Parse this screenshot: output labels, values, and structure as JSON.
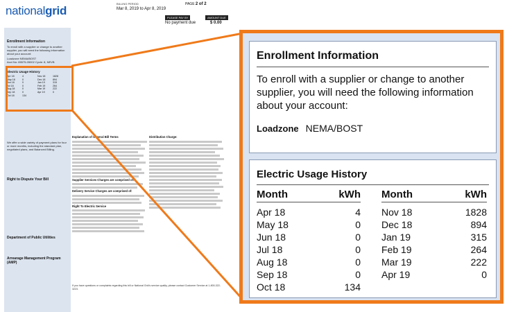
{
  "bill": {
    "logo_light": "national",
    "logo_bold": "grid",
    "billing_period_label": "BILLING PERIOD",
    "billing_period": "Mar 8, 2019 to Apr 8, 2019",
    "page_label": "PAGE",
    "page_value": "2 of 2",
    "please_pay_by_label": "PLEASE PAY BY",
    "amount_due_label": "AMOUNT DUE",
    "please_pay_by": "No payment due",
    "amount_due": "$ 0.00"
  },
  "sidebar": {
    "enroll_title": "Enrollment Information",
    "enroll_text": "To enroll with a supplier or change to another supplier, you will need the following information about your account:",
    "loadzone_line": "Loadzone NEMA/BOST",
    "acct_line": "Acct No: 65575-05002   Cycle: 8, NEVB",
    "usage_title": "Electric Usage History",
    "cta_text": "We offer a wide variety of payment plans for four or more months, including the standard plan, negotiated plans, and Balanced Billing.",
    "dispute_title": "Right to Dispute Your Bill",
    "dpu_title": "Department of Public Utilities",
    "arrears_title": "Arrearage Management Program (AMP)"
  },
  "columns": {
    "explanation_title": "Explanation of General Bill Terms",
    "supplier_title": "Supplier Services Charges are comprised of:",
    "delivery_title": "Delivery Service Charges are comprised of:",
    "right_title": "Right To Electric Service",
    "distribution_title": "Distribution Charge:",
    "questions_text": "If you have questions or complaints regarding this bill or National Grid's service quality, please contact Customer Service at 1-800-322-3223."
  },
  "callout": {
    "enroll": {
      "title": "Enrollment Information",
      "text": "To enroll with a supplier or change to another supplier, you will need the following information about your account:",
      "loadzone_label": "Loadzone",
      "loadzone_value": "NEMA/BOST"
    },
    "usage": {
      "title": "Electric Usage History",
      "col_month": "Month",
      "col_kwh": "kWh",
      "left": [
        {
          "month": "Apr 18",
          "kwh": "4"
        },
        {
          "month": "May 18",
          "kwh": "0"
        },
        {
          "month": "Jun 18",
          "kwh": "0"
        },
        {
          "month": "Jul 18",
          "kwh": "0"
        },
        {
          "month": "Aug 18",
          "kwh": "0"
        },
        {
          "month": "Sep 18",
          "kwh": "0"
        },
        {
          "month": "Oct 18",
          "kwh": "134"
        }
      ],
      "right": [
        {
          "month": "Nov 18",
          "kwh": "1828"
        },
        {
          "month": "Dec 18",
          "kwh": "894"
        },
        {
          "month": "Jan 19",
          "kwh": "315"
        },
        {
          "month": "Feb 19",
          "kwh": "264"
        },
        {
          "month": "Mar 19",
          "kwh": "222"
        },
        {
          "month": "Apr 19",
          "kwh": "0"
        }
      ]
    }
  },
  "colors": {
    "accent": "#ef7a1a",
    "brand_blue": "#1a5bb0",
    "panel": "#d9e3f1"
  }
}
